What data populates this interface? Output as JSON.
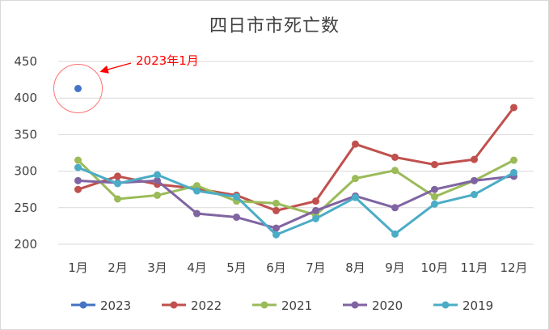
{
  "chart_data": {
    "type": "line",
    "title": "四日市市死亡数",
    "categories": [
      "1月",
      "2月",
      "3月",
      "4月",
      "5月",
      "6月",
      "7月",
      "8月",
      "9月",
      "10月",
      "11月",
      "12月"
    ],
    "ylim": [
      200,
      450
    ],
    "yticks": [
      200,
      250,
      300,
      350,
      400,
      450
    ],
    "grid": true,
    "legend_position": "bottom",
    "series": [
      {
        "name": "2023",
        "color": "#4472c4",
        "values": [
          413,
          null,
          null,
          null,
          null,
          null,
          null,
          null,
          null,
          null,
          null,
          null
        ]
      },
      {
        "name": "2022",
        "color": "#c0504d",
        "values": [
          275,
          293,
          282,
          276,
          267,
          246,
          259,
          337,
          319,
          309,
          316,
          387
        ]
      },
      {
        "name": "2021",
        "color": "#9bbb59",
        "values": [
          315,
          262,
          267,
          280,
          259,
          256,
          240,
          290,
          301,
          265,
          287,
          315
        ]
      },
      {
        "name": "2020",
        "color": "#8064a2",
        "values": [
          287,
          284,
          287,
          242,
          237,
          222,
          246,
          266,
          250,
          275,
          287,
          293
        ]
      },
      {
        "name": "2019",
        "color": "#4bacc6",
        "values": [
          305,
          283,
          295,
          273,
          265,
          213,
          235,
          264,
          214,
          255,
          268,
          298
        ]
      }
    ],
    "annotation": {
      "text": "2023年1月",
      "color": "#ff0000"
    }
  }
}
